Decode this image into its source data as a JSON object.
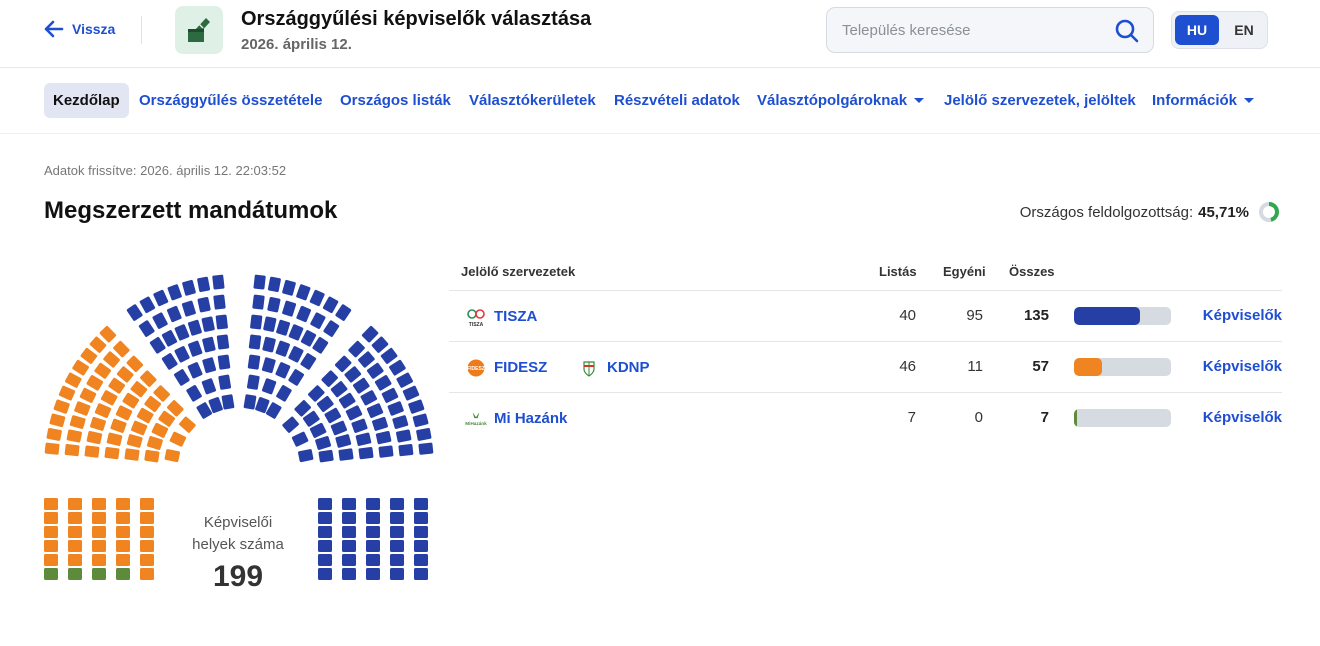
{
  "header": {
    "back_label": "Vissza",
    "title": "Országgyűlési képviselők választása",
    "date": "2026. április 12.",
    "search_placeholder": "Település keresése",
    "lang_hu": "HU",
    "lang_en": "EN"
  },
  "nav": {
    "items": [
      {
        "label": "Kezdőlap",
        "active": true
      },
      {
        "label": "Országgyűlés összetétele"
      },
      {
        "label": "Országos listák"
      },
      {
        "label": "Választókerületek"
      },
      {
        "label": "Részvételi adatok"
      },
      {
        "label": "Választópolgároknak",
        "dropdown": true
      },
      {
        "label": "Jelölő szervezetek, jelöltek"
      },
      {
        "label": "Információk",
        "dropdown": true
      }
    ]
  },
  "main": {
    "updated": "Adatok frissítve: 2026. április 12. 22:03:52",
    "title": "Megszerzett mandátumok",
    "progress_label": "Országos feldolgozottság:",
    "progress_value": "45,71%",
    "progress_fraction": 0.4571
  },
  "parliament": {
    "seat_label_line1": "Képviselői",
    "seat_label_line2": "helyek száma",
    "total_seats": "199",
    "parties": [
      {
        "name": "TISZA",
        "seats": 135,
        "color": "#253fa5"
      },
      {
        "name": "FIDESZ-KDNP",
        "seats": 57,
        "color": "#ef8420"
      },
      {
        "name": "Mi Hazánk",
        "seats": 7,
        "color": "#5e8a3c"
      }
    ]
  },
  "table": {
    "headers": {
      "party": "Jelölő szervezetek",
      "list": "Listás",
      "single": "Egyéni",
      "total": "Összes"
    },
    "link_label": "Képviselők",
    "rows": [
      {
        "parties": [
          {
            "name": "TISZA",
            "logo": "tisza-logo"
          }
        ],
        "list": "40",
        "single": "95",
        "total": "135",
        "share": 0.678,
        "color": "#253fa5"
      },
      {
        "parties": [
          {
            "name": "FIDESZ",
            "logo": "fidesz-logo"
          },
          {
            "name": "KDNP",
            "logo": "kdnp-logo"
          }
        ],
        "list": "46",
        "single": "11",
        "total": "57",
        "share": 0.286,
        "color": "#ef8420"
      },
      {
        "parties": [
          {
            "name": "Mi Hazánk",
            "logo": "mi-hazank-logo"
          }
        ],
        "list": "7",
        "single": "0",
        "total": "7",
        "share": 0.035,
        "color": "#5e8a3c"
      }
    ]
  }
}
